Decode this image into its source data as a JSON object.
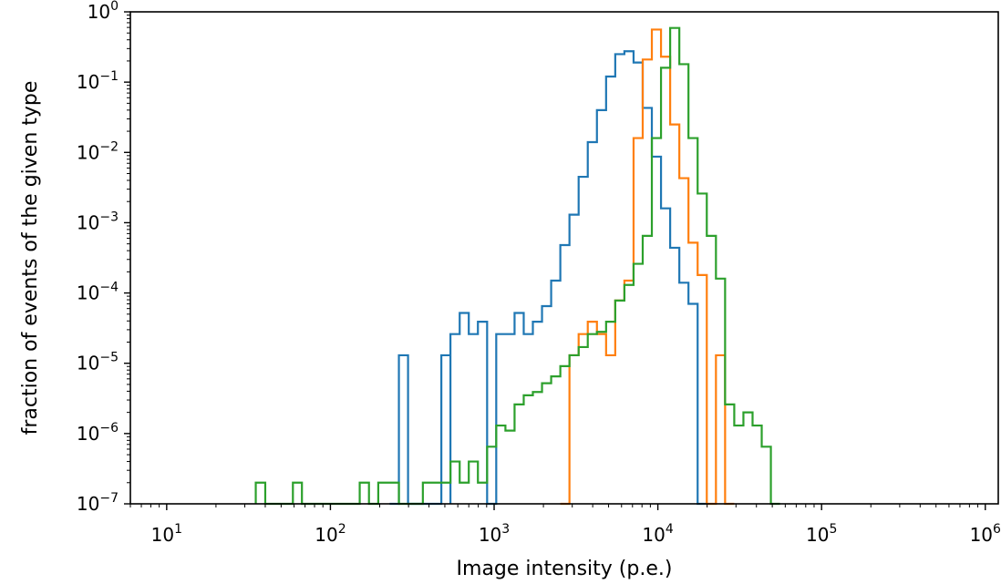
{
  "chart_data": {
    "type": "histogram",
    "xlabel": "Image intensity (p.e.)",
    "ylabel": "fraction of events of the given type",
    "x_scale": "log",
    "y_scale": "log",
    "xlim": [
      6,
      1200000
    ],
    "ylim": [
      1e-07,
      1
    ],
    "x_ticks": [
      {
        "value": 10,
        "base": "10",
        "exp": "1"
      },
      {
        "value": 100,
        "base": "10",
        "exp": "2"
      },
      {
        "value": 1000,
        "base": "10",
        "exp": "3"
      },
      {
        "value": 10000,
        "base": "10",
        "exp": "4"
      },
      {
        "value": 100000,
        "base": "10",
        "exp": "5"
      },
      {
        "value": 1000000,
        "base": "10",
        "exp": "6"
      }
    ],
    "y_ticks": [
      {
        "value": 1,
        "base": "10",
        "exp": "0"
      },
      {
        "value": 0.1,
        "base": "10",
        "exp": "−1"
      },
      {
        "value": 0.01,
        "base": "10",
        "exp": "−2"
      },
      {
        "value": 0.001,
        "base": "10",
        "exp": "−3"
      },
      {
        "value": 0.0001,
        "base": "10",
        "exp": "−4"
      },
      {
        "value": 1e-05,
        "base": "10",
        "exp": "−5"
      },
      {
        "value": 1e-06,
        "base": "10",
        "exp": "−6"
      },
      {
        "value": 1e-07,
        "base": "10",
        "exp": "−7"
      }
    ],
    "grid": false,
    "legend": "none",
    "series": [
      {
        "color": "#1f77b4",
        "points": [
          [
            230,
            1e-07
          ],
          [
            262,
            1.3e-05
          ],
          [
            298,
            1e-07
          ],
          [
            418,
            1e-07
          ],
          [
            476,
            1.3e-05
          ],
          [
            541,
            1e-07
          ],
          [
            541,
            2.6e-05
          ],
          [
            616,
            5.2e-05
          ],
          [
            700,
            2.6e-05
          ],
          [
            796,
            3.9e-05
          ],
          [
            906,
            1e-07
          ],
          [
            1030,
            2.6e-05
          ],
          [
            1172,
            2.6e-05
          ],
          [
            1333,
            5.2e-05
          ],
          [
            1516,
            2.6e-05
          ],
          [
            1724,
            3.9e-05
          ],
          [
            1961,
            6.5e-05
          ],
          [
            2230,
            0.00015
          ],
          [
            2537,
            0.00048
          ],
          [
            2885,
            0.0013
          ],
          [
            3282,
            0.0045
          ],
          [
            3732,
            0.014
          ],
          [
            4245,
            0.04
          ],
          [
            4829,
            0.12
          ],
          [
            5492,
            0.25
          ],
          [
            6247,
            0.275
          ],
          [
            7105,
            0.19
          ],
          [
            8081,
            0.043
          ],
          [
            9191,
            0.0087
          ],
          [
            10454,
            0.0016
          ],
          [
            11891,
            0.00044
          ],
          [
            13525,
            0.00014
          ],
          [
            15383,
            7e-05
          ],
          [
            17497,
            1e-07
          ]
        ]
      },
      {
        "color": "#ff7f0e",
        "points": [
          [
            2537,
            1e-07
          ],
          [
            2885,
            1.3e-05
          ],
          [
            3282,
            2.6e-05
          ],
          [
            3732,
            3.9e-05
          ],
          [
            4245,
            2.6e-05
          ],
          [
            4829,
            1.3e-05
          ],
          [
            5492,
            7.8e-05
          ],
          [
            6247,
            0.00015
          ],
          [
            7105,
            0.016
          ],
          [
            8081,
            0.21
          ],
          [
            9191,
            0.56
          ],
          [
            10454,
            0.23
          ],
          [
            11891,
            0.025
          ],
          [
            13525,
            0.0043
          ],
          [
            15383,
            0.00052
          ],
          [
            17497,
            0.00018
          ],
          [
            19901,
            1e-07
          ],
          [
            22636,
            1.3e-05
          ],
          [
            25746,
            1e-07
          ]
        ]
      },
      {
        "color": "#2ca02c",
        "points": [
          [
            35,
            2e-07
          ],
          [
            40,
            1e-07
          ],
          [
            52,
            1e-07
          ],
          [
            59,
            2e-07
          ],
          [
            67,
            1e-07
          ],
          [
            133,
            1e-07
          ],
          [
            151,
            2e-07
          ],
          [
            172,
            1e-07
          ],
          [
            196,
            2e-07
          ],
          [
            262,
            1e-07
          ],
          [
            367,
            2e-07
          ],
          [
            541,
            4e-07
          ],
          [
            616,
            2e-07
          ],
          [
            700,
            4e-07
          ],
          [
            796,
            2e-07
          ],
          [
            906,
            6.5e-07
          ],
          [
            1030,
            1.3e-06
          ],
          [
            1172,
            1.1e-06
          ],
          [
            1333,
            2.6e-06
          ],
          [
            1516,
            3.5e-06
          ],
          [
            1724,
            3.9e-06
          ],
          [
            1961,
            5.2e-06
          ],
          [
            2230,
            6.5e-06
          ],
          [
            2537,
            9.1e-06
          ],
          [
            2885,
            1.3e-05
          ],
          [
            3282,
            1.7e-05
          ],
          [
            3732,
            2.6e-05
          ],
          [
            4245,
            2.8e-05
          ],
          [
            4829,
            3.9e-05
          ],
          [
            5492,
            7.8e-05
          ],
          [
            6247,
            0.00013
          ],
          [
            7105,
            0.00026
          ],
          [
            8081,
            0.00065
          ],
          [
            9191,
            0.016
          ],
          [
            10454,
            0.16
          ],
          [
            11891,
            0.59
          ],
          [
            13525,
            0.18
          ],
          [
            15383,
            0.016
          ],
          [
            17497,
            0.0026
          ],
          [
            19901,
            0.00065
          ],
          [
            22636,
            0.00016
          ],
          [
            25746,
            2.6e-06
          ],
          [
            29284,
            1.3e-06
          ],
          [
            33308,
            2e-06
          ],
          [
            37884,
            1.3e-06
          ],
          [
            43089,
            6.5e-07
          ],
          [
            49009,
            1e-07
          ]
        ]
      }
    ]
  }
}
